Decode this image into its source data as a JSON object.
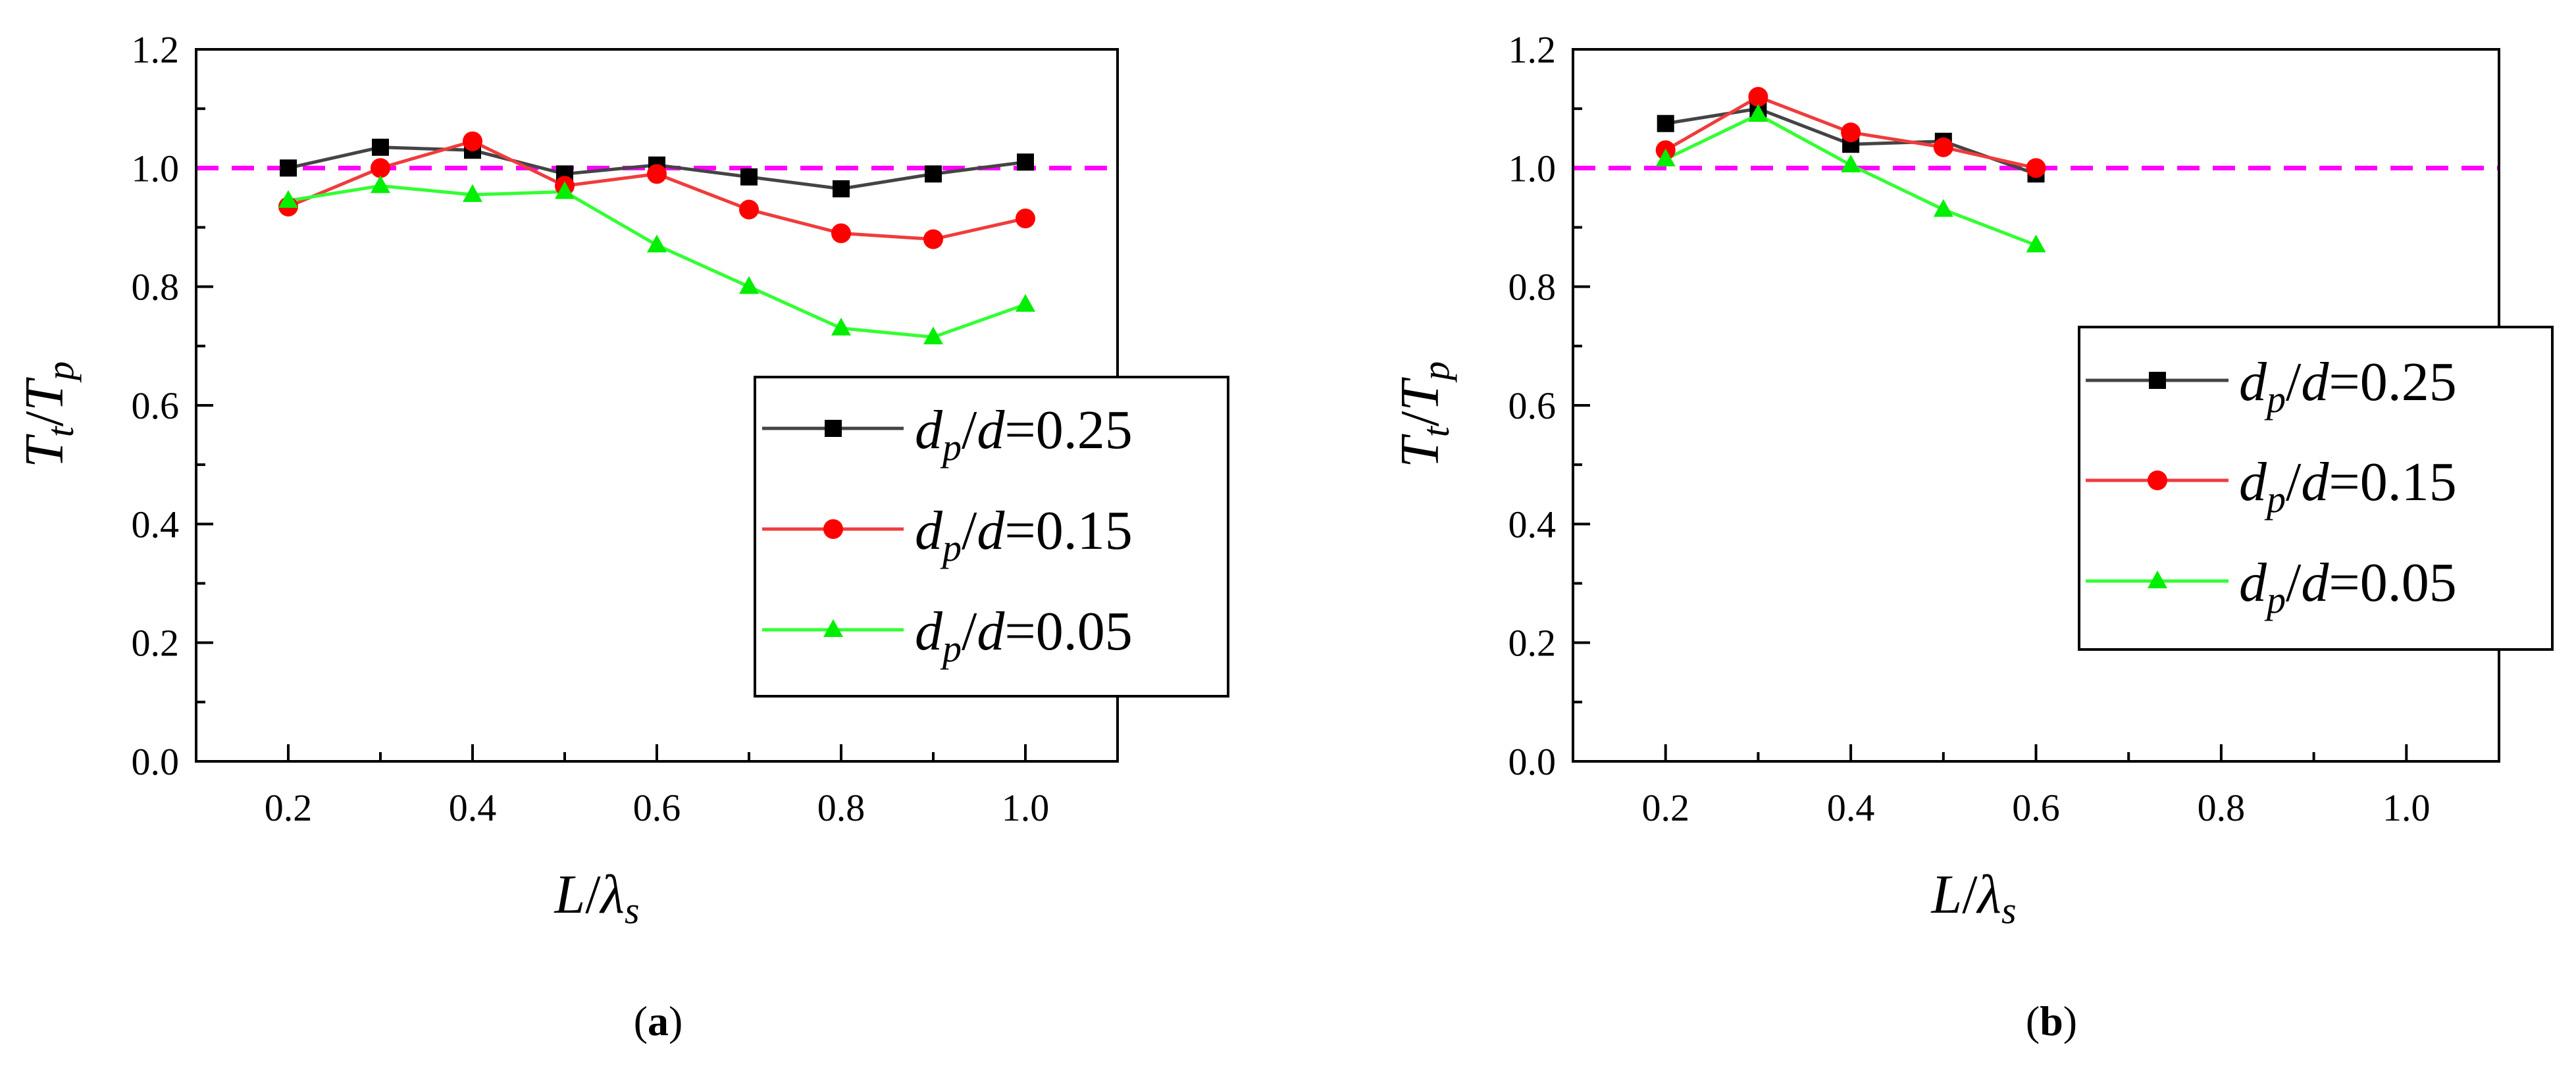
{
  "colors": {
    "series_025": "#000000",
    "series_015": "#ff0000",
    "series_005": "#00ee00",
    "reference_line": "#ff00ff",
    "line_025": "#444444",
    "line_015": "#f03c3c",
    "line_005": "#33ff33"
  },
  "chart_data": [
    {
      "id": "a",
      "type": "line",
      "caption": {
        "open": "(",
        "letter": "a",
        "close": ")"
      },
      "xlabel": {
        "main": "L",
        "sep": "/",
        "greek": "λ",
        "sub": "s"
      },
      "ylabel": {
        "t1": "T",
        "sub1": "t",
        "sep": "/",
        "t2": "T",
        "sub2": "p"
      },
      "xlim": [
        0.1,
        1.1
      ],
      "ylim": [
        0.0,
        1.2
      ],
      "x_ticks": [
        "0.2",
        "0.4",
        "0.6",
        "0.8",
        "1.0"
      ],
      "x_tick_values": [
        0.2,
        0.4,
        0.6,
        0.8,
        1.0
      ],
      "y_ticks": [
        "0.0",
        "0.2",
        "0.4",
        "0.6",
        "0.8",
        "1.0",
        "1.2"
      ],
      "y_tick_values": [
        0.0,
        0.2,
        0.4,
        0.6,
        0.8,
        1.0,
        1.2
      ],
      "reference_line": {
        "y": 1.0,
        "style": "dashed"
      },
      "legend": {
        "position": "right-middle"
      },
      "series": [
        {
          "key": "025",
          "d": "d",
          "p": "p",
          "eq": "=0.25",
          "marker": "square",
          "x": [
            0.2,
            0.3,
            0.4,
            0.5,
            0.6,
            0.7,
            0.8,
            0.9,
            1.0
          ],
          "y": [
            1.0,
            1.035,
            1.03,
            0.99,
            1.005,
            0.985,
            0.965,
            0.99,
            1.01
          ]
        },
        {
          "key": "015",
          "d": "d",
          "p": "p",
          "eq": "=0.15",
          "marker": "circle",
          "x": [
            0.2,
            0.3,
            0.4,
            0.5,
            0.6,
            0.7,
            0.8,
            0.9,
            1.0
          ],
          "y": [
            0.935,
            1.0,
            1.045,
            0.97,
            0.99,
            0.93,
            0.89,
            0.88,
            0.915
          ]
        },
        {
          "key": "005",
          "d": "d",
          "p": "p",
          "eq": "=0.05",
          "marker": "triangle",
          "x": [
            0.2,
            0.3,
            0.4,
            0.5,
            0.6,
            0.7,
            0.8,
            0.9,
            1.0
          ],
          "y": [
            0.945,
            0.97,
            0.955,
            0.96,
            0.87,
            0.8,
            0.73,
            0.715,
            0.77
          ]
        }
      ]
    },
    {
      "id": "b",
      "type": "line",
      "caption": {
        "open": "(",
        "letter": "b",
        "close": ")"
      },
      "xlabel": {
        "main": "L",
        "sep": "/",
        "greek": "λ",
        "sub": "s"
      },
      "ylabel": {
        "t1": "T",
        "sub1": "t",
        "sep": "/",
        "t2": "T",
        "sub2": "p"
      },
      "xlim": [
        0.1,
        1.1
      ],
      "ylim": [
        0.0,
        1.2
      ],
      "x_ticks": [
        "0.2",
        "0.4",
        "0.6",
        "0.8",
        "1.0"
      ],
      "x_tick_values": [
        0.2,
        0.4,
        0.6,
        0.8,
        1.0
      ],
      "y_ticks": [
        "0.0",
        "0.2",
        "0.4",
        "0.6",
        "0.8",
        "1.0",
        "1.2"
      ],
      "y_tick_values": [
        0.0,
        0.2,
        0.4,
        0.6,
        0.8,
        1.0,
        1.2
      ],
      "reference_line": {
        "y": 1.0,
        "style": "dashed"
      },
      "legend": {
        "position": "right-upper"
      },
      "series": [
        {
          "key": "025",
          "d": "d",
          "p": "p",
          "eq": "=0.25",
          "marker": "square",
          "x": [
            0.2,
            0.3,
            0.4,
            0.5,
            0.6
          ],
          "y": [
            1.075,
            1.1,
            1.04,
            1.045,
            0.99
          ]
        },
        {
          "key": "015",
          "d": "d",
          "p": "p",
          "eq": "=0.15",
          "marker": "circle",
          "x": [
            0.2,
            0.3,
            0.4,
            0.5,
            0.6
          ],
          "y": [
            1.03,
            1.12,
            1.06,
            1.035,
            1.0
          ]
        },
        {
          "key": "005",
          "d": "d",
          "p": "p",
          "eq": "=0.05",
          "marker": "triangle",
          "x": [
            0.2,
            0.3,
            0.4,
            0.5,
            0.6
          ],
          "y": [
            1.015,
            1.09,
            1.005,
            0.93,
            0.87
          ]
        }
      ]
    }
  ]
}
